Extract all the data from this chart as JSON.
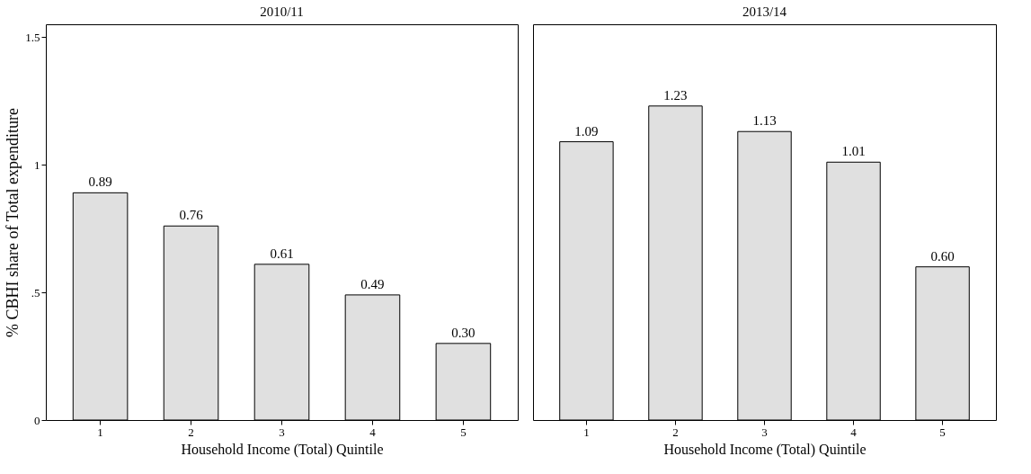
{
  "chart_data": [
    {
      "type": "bar",
      "title": "2010/11",
      "xlabel": "Household Income (Total) Quintile",
      "ylabel": "% CBHI share of Total expenditure",
      "categories": [
        "1",
        "2",
        "3",
        "4",
        "5"
      ],
      "series": [
        {
          "color": "#e0e0e0",
          "values": [
            0.89,
            0.76,
            0.61,
            0.49,
            0.3
          ],
          "value_labels": [
            "0.89",
            "0.76",
            "0.61",
            "0.49",
            "0.30"
          ]
        }
      ],
      "ylim": [
        0,
        1.55
      ],
      "yticks": [
        0,
        {
          "value": 0.5,
          "label": ".5"
        },
        1,
        1.5
      ],
      "grid": false
    },
    {
      "type": "bar",
      "title": "2013/14",
      "xlabel": "Household Income (Total) Quintile",
      "categories": [
        "1",
        "2",
        "3",
        "4",
        "5"
      ],
      "series": [
        {
          "color": "#e0e0e0",
          "values": [
            1.09,
            1.23,
            1.13,
            1.01,
            0.6
          ],
          "value_labels": [
            "1.09",
            "1.23",
            "1.13",
            "1.01",
            "0.60"
          ]
        }
      ],
      "ylim": [
        0,
        1.55
      ],
      "grid": false,
      "tick_labels": "x"
    }
  ]
}
